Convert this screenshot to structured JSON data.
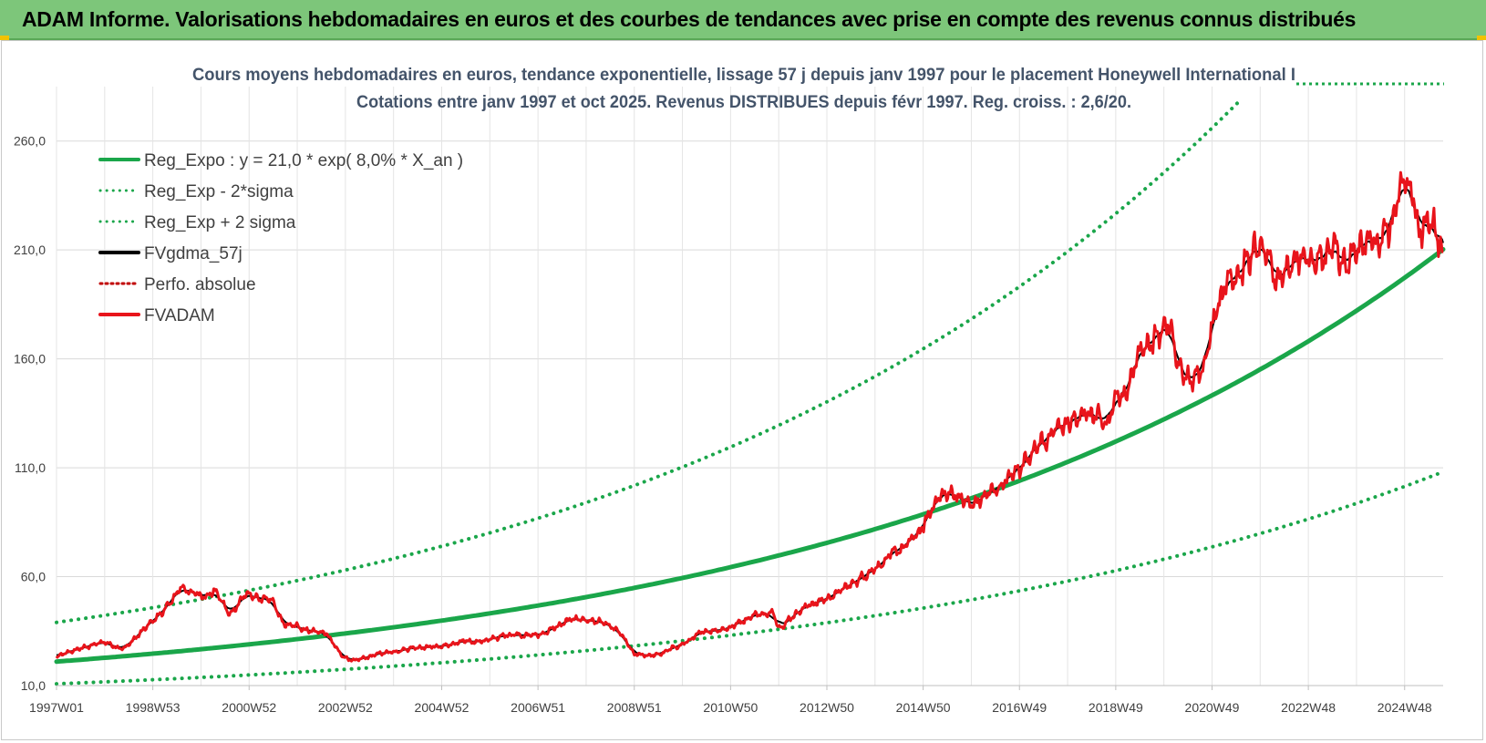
{
  "header": {
    "banner_title": "ADAM Informe. Valorisations hebdomadaires en euros et des courbes de tendances avec prise en compte des revenus connus distribués"
  },
  "chart_data": {
    "type": "line",
    "title": "Cours moyens hebdomadaires en euros, tendance exponentielle, lissage 57 j depuis janv 1997 pour le placement Honeywell International I",
    "subtitle": "Cotations entre janv 1997 et oct 2025. Revenus DISTRIBUES depuis févr 1997. Reg. croiss. : 2,6/20.",
    "xlabel": "",
    "ylabel": "",
    "x_range": [
      1997.0,
      2025.8
    ],
    "x_ticks": [
      {
        "x": 1997.0,
        "label": "1997W01"
      },
      {
        "x": 1999.0,
        "label": "1998W53"
      },
      {
        "x": 2001.0,
        "label": "2000W52"
      },
      {
        "x": 2003.0,
        "label": "2002W52"
      },
      {
        "x": 2005.0,
        "label": "2004W52"
      },
      {
        "x": 2007.0,
        "label": "2006W51"
      },
      {
        "x": 2009.0,
        "label": "2008W51"
      },
      {
        "x": 2011.0,
        "label": "2010W50"
      },
      {
        "x": 2013.0,
        "label": "2012W50"
      },
      {
        "x": 2015.0,
        "label": "2014W50"
      },
      {
        "x": 2017.0,
        "label": "2016W49"
      },
      {
        "x": 2019.0,
        "label": "2018W49"
      },
      {
        "x": 2021.0,
        "label": "2020W49"
      },
      {
        "x": 2023.0,
        "label": "2022W48"
      },
      {
        "x": 2025.0,
        "label": "2024W48"
      }
    ],
    "ylim": [
      10,
      285
    ],
    "y_ticks": [
      {
        "v": 10,
        "label": "10,0"
      },
      {
        "v": 60,
        "label": "60,0"
      },
      {
        "v": 110,
        "label": "110,0"
      },
      {
        "v": 160,
        "label": "160,0"
      },
      {
        "v": 210,
        "label": "210,0"
      },
      {
        "v": 260,
        "label": "260,0"
      }
    ],
    "grid": true,
    "legend_position": "top-left",
    "series": [
      {
        "name": "Reg_Expo : y = 21,0 * exp( 8,0% *  X_an )",
        "color": "#1aa64a",
        "style": "solid",
        "kind": "exp",
        "a": 21.0,
        "k": 0.08
      },
      {
        "name": "Reg_Exp - 2*sigma",
        "color": "#1aa64a",
        "style": "dotted",
        "kind": "exp",
        "a": 10.8,
        "k": 0.08
      },
      {
        "name": "Reg_Exp + 2 sigma",
        "color": "#1aa64a",
        "style": "dotted",
        "kind": "exp",
        "a": 39.0,
        "k": 0.08
      },
      {
        "name": "FVgdma_57j",
        "color": "#000000",
        "style": "solid",
        "kind": "smooth"
      },
      {
        "name": "Perfo. absolue",
        "color": "#c00000",
        "style": "dotted",
        "kind": "none"
      },
      {
        "name": "FVADAM",
        "color": "#e8141b",
        "style": "solid",
        "kind": "data"
      }
    ],
    "fvadam_keypoints": [
      [
        1997.0,
        23
      ],
      [
        1997.5,
        27
      ],
      [
        1998.0,
        30
      ],
      [
        1998.4,
        27
      ],
      [
        1998.7,
        33
      ],
      [
        1999.3,
        46
      ],
      [
        1999.6,
        55
      ],
      [
        2000.0,
        51
      ],
      [
        2000.3,
        54
      ],
      [
        2000.6,
        42
      ],
      [
        2000.9,
        52
      ],
      [
        2001.2,
        50
      ],
      [
        2001.5,
        48
      ],
      [
        2001.7,
        38
      ],
      [
        2002.2,
        36
      ],
      [
        2002.6,
        34
      ],
      [
        2002.9,
        24
      ],
      [
        2003.2,
        21
      ],
      [
        2003.6,
        24
      ],
      [
        2004.0,
        26
      ],
      [
        2004.5,
        28
      ],
      [
        2005.0,
        28
      ],
      [
        2005.5,
        30
      ],
      [
        2006.0,
        31
      ],
      [
        2006.5,
        34
      ],
      [
        2007.0,
        33
      ],
      [
        2007.5,
        38
      ],
      [
        2007.8,
        41
      ],
      [
        2008.3,
        39
      ],
      [
        2008.7,
        34
      ],
      [
        2009.0,
        24
      ],
      [
        2009.5,
        24
      ],
      [
        2010.0,
        29
      ],
      [
        2010.5,
        35
      ],
      [
        2011.0,
        37
      ],
      [
        2011.5,
        43
      ],
      [
        2011.9,
        43
      ],
      [
        2012.0,
        37
      ],
      [
        2012.5,
        46
      ],
      [
        2013.0,
        50
      ],
      [
        2013.5,
        56
      ],
      [
        2014.0,
        65
      ],
      [
        2014.4,
        70
      ],
      [
        2014.7,
        75
      ],
      [
        2015.0,
        82
      ],
      [
        2015.3,
        97
      ],
      [
        2015.7,
        98
      ],
      [
        2016.0,
        92
      ],
      [
        2016.5,
        100
      ],
      [
        2016.8,
        105
      ],
      [
        2017.0,
        110
      ],
      [
        2017.3,
        120
      ],
      [
        2017.6,
        124
      ],
      [
        2018.0,
        130
      ],
      [
        2018.4,
        135
      ],
      [
        2018.8,
        130
      ],
      [
        2019.0,
        142
      ],
      [
        2019.3,
        150
      ],
      [
        2019.5,
        165
      ],
      [
        2019.8,
        170
      ],
      [
        2020.1,
        177
      ],
      [
        2020.3,
        155
      ],
      [
        2020.6,
        148
      ],
      [
        2020.9,
        165
      ],
      [
        2021.1,
        188
      ],
      [
        2021.4,
        200
      ],
      [
        2021.7,
        205
      ],
      [
        2022.0,
        210
      ],
      [
        2022.3,
        195
      ],
      [
        2022.6,
        205
      ],
      [
        2022.9,
        208
      ],
      [
        2023.2,
        205
      ],
      [
        2023.5,
        210
      ],
      [
        2023.8,
        200
      ],
      [
        2024.1,
        210
      ],
      [
        2024.4,
        215
      ],
      [
        2024.8,
        222
      ],
      [
        2025.0,
        242
      ],
      [
        2025.3,
        222
      ],
      [
        2025.5,
        225
      ],
      [
        2025.8,
        210
      ]
    ]
  }
}
